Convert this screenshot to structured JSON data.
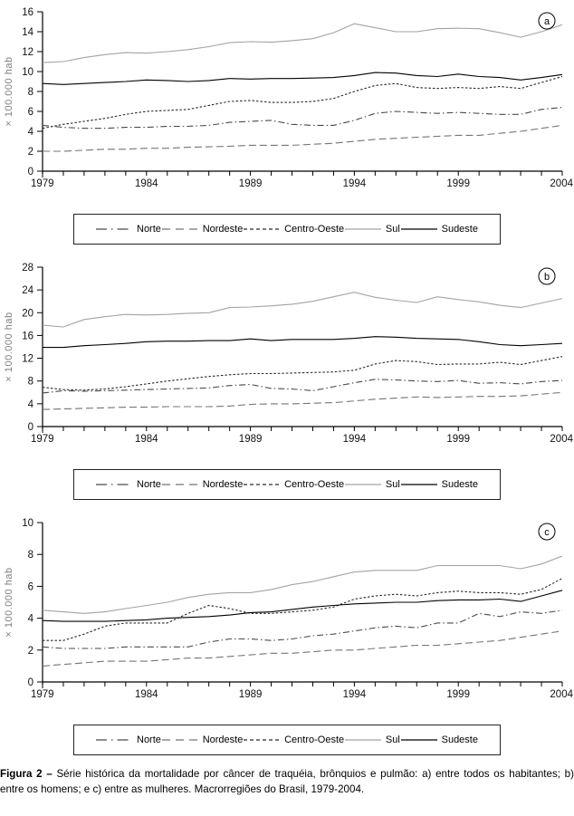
{
  "figure": {
    "caption_label": "Figura 2 –",
    "caption_text": "Série histórica da mortalidade por câncer de traquéia, brônquios e pulmão: a) entre todos os habitantes; b) entre os homens; e c) entre as mulheres. Macrorregiões do Brasil, 1979-2004."
  },
  "colors": {
    "axis": "#000000",
    "unit_label": "#808080",
    "norte": "#4a4a4a",
    "nordeste": "#757575",
    "centro_oeste": "#2a2a2a",
    "sul": "#a3a3a3",
    "sudeste": "#000000"
  },
  "chart_years": [
    1979,
    1980,
    1981,
    1982,
    1983,
    1984,
    1985,
    1986,
    1987,
    1988,
    1989,
    1990,
    1991,
    1992,
    1993,
    1994,
    1995,
    1996,
    1997,
    1998,
    1999,
    2000,
    2001,
    2002,
    2003,
    2004
  ],
  "chart_data": [
    {
      "type": "line",
      "panel_label": "a",
      "ylabel": "× 100.000 hab",
      "xlabel": "",
      "grid": false,
      "ylim": [
        0,
        16
      ],
      "ytick_step": 2,
      "xtick_labels": [
        "1979",
        "1984",
        "1989",
        "1994",
        "1999",
        "2004"
      ],
      "series": [
        {
          "key": "norte",
          "name": "Norte",
          "color": "#4a4a4a",
          "dash": "7 3 1.5 3",
          "legend_dash": "12 5 1.5 5",
          "values": [
            4.6,
            4.4,
            4.3,
            4.3,
            4.4,
            4.4,
            4.5,
            4.5,
            4.6,
            4.9,
            5.0,
            5.1,
            4.7,
            4.6,
            4.6,
            5.1,
            5.8,
            6.0,
            5.9,
            5.8,
            5.9,
            5.8,
            5.7,
            5.7,
            6.2,
            6.4
          ]
        },
        {
          "key": "nordeste",
          "name": "Nordeste",
          "color": "#757575",
          "dash": "8 4",
          "legend_dash": "9 6",
          "values": [
            2.0,
            2.0,
            2.1,
            2.2,
            2.2,
            2.3,
            2.3,
            2.4,
            2.45,
            2.5,
            2.6,
            2.6,
            2.6,
            2.7,
            2.8,
            3.0,
            3.2,
            3.3,
            3.4,
            3.5,
            3.6,
            3.6,
            3.8,
            4.0,
            4.3,
            4.6
          ]
        },
        {
          "key": "centro_oeste",
          "name": "Centro-Oeste",
          "color": "#2a2a2a",
          "dash": "2.5 2",
          "legend_dash": "4 3",
          "values": [
            4.3,
            4.7,
            5.0,
            5.3,
            5.7,
            6.0,
            6.1,
            6.2,
            6.6,
            7.0,
            7.1,
            6.9,
            6.9,
            7.0,
            7.3,
            8.0,
            8.6,
            8.8,
            8.4,
            8.3,
            8.4,
            8.3,
            8.5,
            8.3,
            8.9,
            9.5
          ]
        },
        {
          "key": "sul",
          "name": "Sul",
          "color": "#a3a3a3",
          "dash": "",
          "legend_dash": "",
          "values": [
            10.9,
            11.0,
            11.4,
            11.7,
            11.9,
            11.85,
            12.0,
            12.2,
            12.5,
            12.9,
            13.0,
            12.95,
            13.1,
            13.3,
            13.9,
            14.8,
            14.4,
            14.0,
            14.0,
            14.3,
            14.35,
            14.3,
            13.9,
            13.45,
            14.0,
            14.7
          ]
        },
        {
          "key": "sudeste",
          "name": "Sudeste",
          "color": "#000000",
          "dash": "",
          "legend_dash": "",
          "values": [
            8.8,
            8.7,
            8.8,
            8.9,
            9.0,
            9.15,
            9.1,
            9.0,
            9.1,
            9.3,
            9.25,
            9.3,
            9.3,
            9.35,
            9.4,
            9.6,
            9.9,
            9.85,
            9.6,
            9.5,
            9.75,
            9.5,
            9.4,
            9.15,
            9.4,
            9.7
          ]
        }
      ]
    },
    {
      "type": "line",
      "panel_label": "b",
      "ylabel": "× 100.000 hab",
      "xlabel": "",
      "grid": false,
      "ylim": [
        0,
        28
      ],
      "ytick_step": 4,
      "xtick_labels": [
        "1979",
        "1984",
        "1989",
        "1994",
        "1999",
        "2004"
      ],
      "series": [
        {
          "key": "norte",
          "name": "Norte",
          "color": "#4a4a4a",
          "dash": "7 3 1.5 3",
          "legend_dash": "12 5 1.5 5",
          "values": [
            5.9,
            6.3,
            6.2,
            6.3,
            6.4,
            6.5,
            6.6,
            6.7,
            6.8,
            7.2,
            7.4,
            6.7,
            6.6,
            6.3,
            7.0,
            7.7,
            8.3,
            8.2,
            8.0,
            7.9,
            8.1,
            7.6,
            7.7,
            7.5,
            7.9,
            8.1
          ]
        },
        {
          "key": "nordeste",
          "name": "Nordeste",
          "color": "#757575",
          "dash": "8 4",
          "legend_dash": "9 6",
          "values": [
            3.0,
            3.1,
            3.2,
            3.3,
            3.4,
            3.4,
            3.5,
            3.5,
            3.5,
            3.6,
            3.9,
            4.0,
            4.0,
            4.1,
            4.2,
            4.5,
            4.8,
            5.0,
            5.2,
            5.1,
            5.2,
            5.3,
            5.3,
            5.4,
            5.7,
            6.0
          ]
        },
        {
          "key": "centro_oeste",
          "name": "Centro-Oeste",
          "color": "#2a2a2a",
          "dash": "2.5 2",
          "legend_dash": "4 3",
          "values": [
            6.9,
            6.5,
            6.4,
            6.6,
            7.0,
            7.5,
            8.0,
            8.4,
            8.8,
            9.1,
            9.3,
            9.3,
            9.4,
            9.5,
            9.6,
            9.9,
            11.0,
            11.6,
            11.4,
            10.9,
            11.0,
            11.0,
            11.3,
            10.9,
            11.6,
            12.3
          ]
        },
        {
          "key": "sul",
          "name": "Sul",
          "color": "#a3a3a3",
          "dash": "",
          "legend_dash": "",
          "values": [
            17.8,
            17.5,
            18.8,
            19.3,
            19.7,
            19.6,
            19.7,
            19.9,
            20.0,
            20.9,
            21.0,
            21.2,
            21.5,
            22.0,
            22.8,
            23.6,
            22.7,
            22.2,
            21.8,
            22.8,
            22.3,
            21.9,
            21.3,
            20.9,
            21.7,
            22.5
          ]
        },
        {
          "key": "sudeste",
          "name": "Sudeste",
          "color": "#000000",
          "dash": "",
          "legend_dash": "",
          "values": [
            13.9,
            13.9,
            14.2,
            14.4,
            14.6,
            14.9,
            15.0,
            15.0,
            15.1,
            15.1,
            15.4,
            15.1,
            15.3,
            15.3,
            15.3,
            15.5,
            15.8,
            15.7,
            15.5,
            15.4,
            15.3,
            14.9,
            14.4,
            14.2,
            14.4,
            14.6
          ]
        }
      ]
    },
    {
      "type": "line",
      "panel_label": "c",
      "ylabel": "× 100.000 hab",
      "xlabel": "",
      "grid": false,
      "ylim": [
        0,
        10
      ],
      "ytick_step": 2,
      "xtick_labels": [
        "1979",
        "1984",
        "1989",
        "1994",
        "1999",
        "2004"
      ],
      "series": [
        {
          "key": "norte",
          "name": "Norte",
          "color": "#4a4a4a",
          "dash": "7 3 1.5 3",
          "legend_dash": "12 5 1.5 5",
          "values": [
            2.2,
            2.1,
            2.1,
            2.1,
            2.2,
            2.2,
            2.2,
            2.2,
            2.5,
            2.7,
            2.7,
            2.6,
            2.7,
            2.9,
            3.0,
            3.2,
            3.4,
            3.5,
            3.4,
            3.7,
            3.7,
            4.3,
            4.1,
            4.4,
            4.3,
            4.5
          ]
        },
        {
          "key": "nordeste",
          "name": "Nordeste",
          "color": "#757575",
          "dash": "8 4",
          "legend_dash": "9 6",
          "values": [
            1.0,
            1.1,
            1.2,
            1.3,
            1.3,
            1.3,
            1.4,
            1.5,
            1.5,
            1.6,
            1.7,
            1.8,
            1.8,
            1.9,
            2.0,
            2.0,
            2.1,
            2.2,
            2.3,
            2.3,
            2.4,
            2.5,
            2.6,
            2.8,
            3.0,
            3.2
          ]
        },
        {
          "key": "centro_oeste",
          "name": "Centro-Oeste",
          "color": "#2a2a2a",
          "dash": "2.5 2",
          "legend_dash": "4 3",
          "values": [
            2.6,
            2.6,
            3.0,
            3.5,
            3.7,
            3.7,
            3.7,
            4.3,
            4.8,
            4.6,
            4.3,
            4.3,
            4.4,
            4.5,
            4.7,
            5.2,
            5.4,
            5.5,
            5.4,
            5.6,
            5.7,
            5.6,
            5.6,
            5.5,
            5.8,
            6.5
          ]
        },
        {
          "key": "sul",
          "name": "Sul",
          "color": "#a3a3a3",
          "dash": "",
          "legend_dash": "",
          "values": [
            4.5,
            4.4,
            4.3,
            4.4,
            4.6,
            4.8,
            5.0,
            5.3,
            5.5,
            5.6,
            5.6,
            5.8,
            6.1,
            6.3,
            6.6,
            6.9,
            7.0,
            7.0,
            7.0,
            7.3,
            7.3,
            7.3,
            7.3,
            7.1,
            7.4,
            7.9
          ]
        },
        {
          "key": "sudeste",
          "name": "Sudeste",
          "color": "#000000",
          "dash": "",
          "legend_dash": "",
          "values": [
            3.85,
            3.8,
            3.8,
            3.8,
            3.85,
            3.9,
            4.0,
            4.05,
            4.1,
            4.2,
            4.35,
            4.4,
            4.55,
            4.7,
            4.8,
            4.9,
            4.95,
            5.0,
            5.0,
            5.1,
            5.15,
            5.15,
            5.2,
            5.05,
            5.4,
            5.75
          ]
        }
      ]
    }
  ]
}
